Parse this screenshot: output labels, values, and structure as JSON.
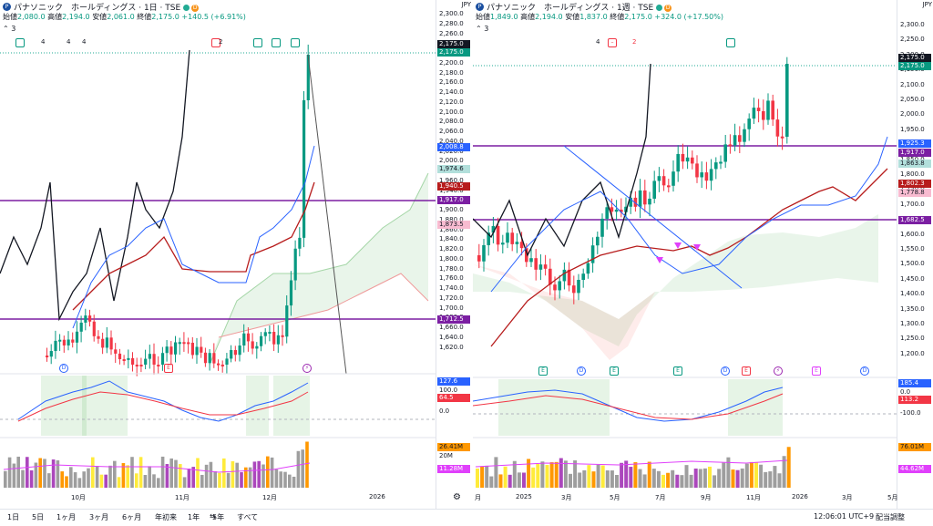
{
  "left": {
    "title": "パナソニック　ホールディングス · 1日 · TSE",
    "badge": "D",
    "ohlc": {
      "open_label": "始値",
      "open": "2,080.0",
      "high_label": "高値",
      "high": "2,194.0",
      "low_label": "安値",
      "low": "2,061.0",
      "close_label": "終値",
      "close": "2,175.0",
      "change": "+140.5 (+6.91%)"
    },
    "indicator_count": "3",
    "currency": "JPY",
    "yticks": [
      "2,300.0",
      "2,280.0",
      "2,260.0",
      "2,240.0",
      "2,220.0",
      "2,200.0",
      "2,180.0",
      "2,160.0",
      "2,140.0",
      "2,120.0",
      "2,100.0",
      "2,080.0",
      "2,060.0",
      "2,040.0",
      "2,020.0",
      "2,000.0",
      "1,980.0",
      "1,960.0",
      "1,940.0",
      "1,920.0",
      "1,900.0",
      "1,880.0",
      "1,860.0",
      "1,840.0",
      "1,820.0",
      "1,800.0",
      "1,780.0",
      "1,760.0",
      "1,740.0",
      "1,720.0",
      "1,700.0",
      "1,680.0",
      "1,660.0",
      "1,640.0",
      "1,620.0"
    ],
    "tags": [
      {
        "text": "2,175.0",
        "bg": "#131722",
        "fg": "#ffffff"
      },
      {
        "text": "2,175.0",
        "bg": "#089981",
        "fg": "#ffffff"
      },
      {
        "text": "2,008.8",
        "bg": "#2962ff",
        "fg": "#ffffff"
      },
      {
        "text": "1,974.6",
        "bg": "#b2dfdb",
        "fg": "#131722"
      },
      {
        "text": "1,940.5",
        "bg": "#b71c1c",
        "fg": "#ffffff"
      },
      {
        "text": "1,917.0",
        "bg": "#7b1fa2",
        "fg": "#ffffff"
      },
      {
        "text": "1,873.5",
        "bg": "#f8bbd0",
        "fg": "#131722"
      },
      {
        "text": "1,712.5",
        "bg": "#7b1fa2",
        "fg": "#ffffff"
      }
    ],
    "osc": {
      "tags": [
        {
          "text": "127.6",
          "bg": "#2962ff",
          "fg": "#ffffff"
        },
        {
          "text": "64.5",
          "bg": "#f23645",
          "fg": "#ffffff"
        }
      ],
      "ticks": [
        "100.0",
        "0.0"
      ]
    },
    "vol": {
      "tags": [
        {
          "text": "26.41M",
          "bg": "#ff9800",
          "fg": "#131722"
        },
        {
          "text": "11.28M",
          "bg": "#e040fb",
          "fg": "#ffffff"
        }
      ],
      "ticks": [
        "20M"
      ]
    },
    "xlabels": [
      "10月",
      "11月",
      "12月",
      "2026"
    ],
    "event_numbers": [
      "4",
      "4",
      "4",
      "2"
    ]
  },
  "right": {
    "title": "パナソニック　ホールディングス · 1週 · TSE",
    "badge": "D",
    "ohlc": {
      "open_label": "始値",
      "open": "1,849.0",
      "high_label": "高値",
      "high": "2,194.0",
      "low_label": "安値",
      "low": "1,837.0",
      "close_label": "終値",
      "close": "2,175.0",
      "change": "+324.0 (+17.50%)"
    },
    "indicator_count": "3",
    "currency": "JPY",
    "yticks": [
      "2,300.0",
      "2,250.0",
      "2,200.0",
      "2,150.0",
      "2,100.0",
      "2,050.0",
      "2,000.0",
      "1,950.0",
      "1,900.0",
      "1,850.0",
      "1,800.0",
      "1,750.0",
      "1,700.0",
      "1,650.0",
      "1,600.0",
      "1,550.0",
      "1,500.0",
      "1,450.0",
      "1,400.0",
      "1,350.0",
      "1,300.0",
      "1,250.0",
      "1,200.0"
    ],
    "tags": [
      {
        "text": "2,175.0",
        "bg": "#131722",
        "fg": "#ffffff"
      },
      {
        "text": "2,175.0",
        "bg": "#089981",
        "fg": "#ffffff"
      },
      {
        "text": "1,925.3",
        "bg": "#2962ff",
        "fg": "#ffffff"
      },
      {
        "text": "1,917.0",
        "bg": "#7b1fa2",
        "fg": "#ffffff"
      },
      {
        "text": "1,863.8",
        "bg": "#b2dfdb",
        "fg": "#131722"
      },
      {
        "text": "1,802.3",
        "bg": "#b71c1c",
        "fg": "#ffffff"
      },
      {
        "text": "1,778.8",
        "bg": "#f8bbd0",
        "fg": "#131722"
      },
      {
        "text": "1,682.5",
        "bg": "#7b1fa2",
        "fg": "#ffffff"
      }
    ],
    "osc": {
      "tags": [
        {
          "text": "185.4",
          "bg": "#2962ff",
          "fg": "#ffffff"
        },
        {
          "text": "113.2",
          "bg": "#f23645",
          "fg": "#ffffff"
        }
      ],
      "ticks": [
        "0.0",
        "-100.0"
      ]
    },
    "vol": {
      "tags": [
        {
          "text": "76.01M",
          "bg": "#ff9800",
          "fg": "#131722"
        },
        {
          "text": "44.62M",
          "bg": "#e040fb",
          "fg": "#ffffff"
        }
      ],
      "ticks": []
    },
    "xlabels": [
      "月",
      "2025",
      "3月",
      "5月",
      "7月",
      "9月",
      "11月",
      "2026",
      "3月",
      "5月"
    ],
    "event_numbers": [
      "4",
      "2"
    ]
  },
  "toolbar": {
    "ranges": [
      "1日",
      "5日",
      "1ヶ月",
      "3ヶ月",
      "6ヶ月",
      "年初来",
      "1年",
      "5年",
      "すべて"
    ],
    "time": "12:06:01 UTC+9",
    "adjust": "配当調整"
  }
}
